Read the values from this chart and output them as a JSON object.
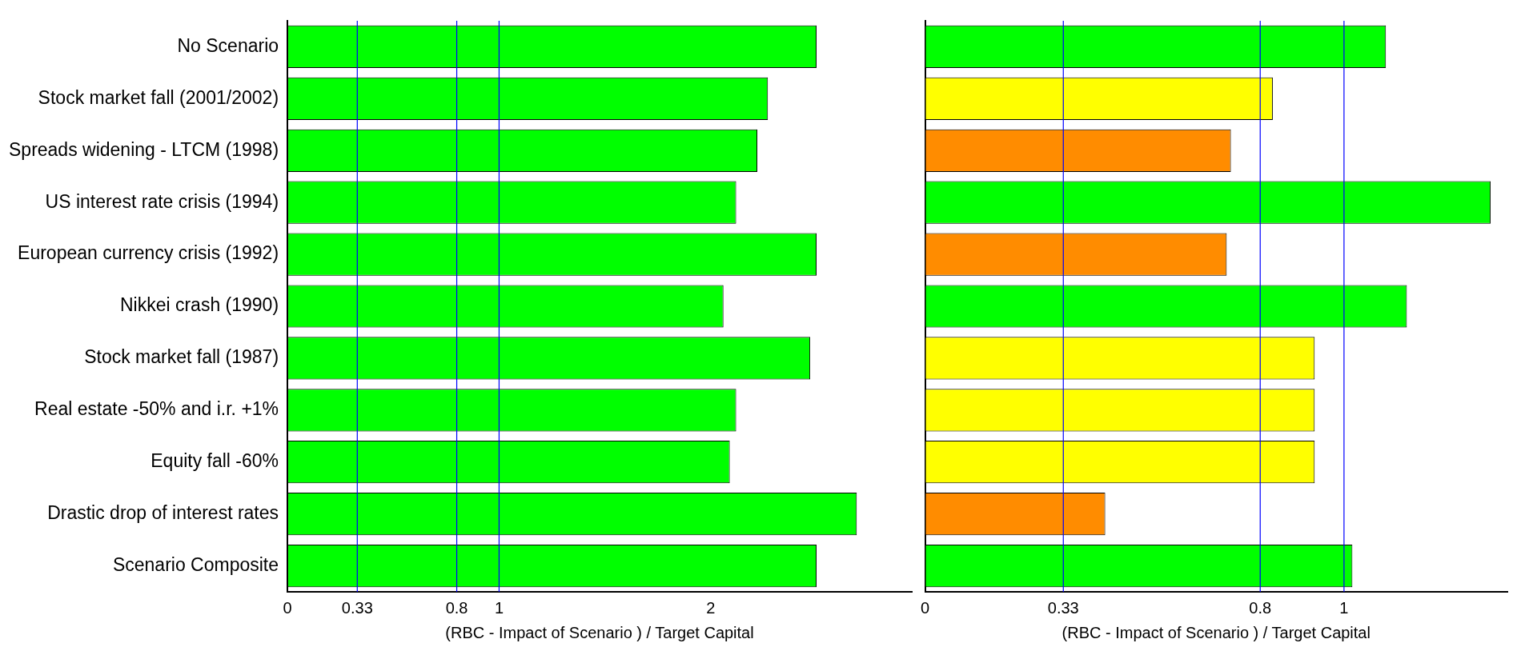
{
  "chart_data": [
    {
      "type": "bar",
      "orientation": "horizontal",
      "xlabel": "(RBC - Impact of Scenario ) / Target Capital",
      "categories": [
        "No Scenario",
        "Stock market fall (2001/2002)",
        "Spreads widening - LTCM (1998)",
        "US interest rate crisis (1994)",
        "European currency crisis (1992)",
        "Nikkei crash (1990)",
        "Stock market fall (1987)",
        "Real estate -50% and i.r. +1%",
        "Equity fall -60%",
        "Drastic drop of interest rates",
        "Scenario Composite"
      ],
      "values": [
        2.5,
        2.27,
        2.22,
        2.12,
        2.5,
        2.06,
        2.47,
        2.12,
        2.09,
        2.69,
        2.5
      ],
      "colors": [
        "#00ff00",
        "#00ff00",
        "#00ff00",
        "#00ff00",
        "#00ff00",
        "#00ff00",
        "#00ff00",
        "#00ff00",
        "#00ff00",
        "#00ff00",
        "#00ff00"
      ],
      "xlim": [
        0,
        2.95
      ],
      "xticks": [
        0,
        0.33,
        0.8,
        1,
        2
      ],
      "ref_lines": [
        {
          "axis": "x",
          "value": 0.33,
          "color": "#0000ff"
        },
        {
          "axis": "x",
          "value": 0.8,
          "color": "#0000ff"
        },
        {
          "axis": "x",
          "value": 1,
          "color": "#0000ff"
        }
      ]
    },
    {
      "type": "bar",
      "orientation": "horizontal",
      "xlabel": "(RBC - Impact of Scenario ) / Target Capital",
      "tick_labels": "x",
      "categories": [
        null,
        null,
        null,
        null,
        null,
        null,
        null,
        null,
        null,
        null,
        null
      ],
      "values": [
        1.1,
        0.83,
        0.73,
        1.35,
        0.72,
        1.15,
        0.93,
        0.93,
        0.93,
        0.43,
        1.02
      ],
      "colors": [
        "#00ff00",
        "#ffff00",
        "#ff8c00",
        "#00ff00",
        "#ff8c00",
        "#00ff00",
        "#ffff00",
        "#ffff00",
        "#ffff00",
        "#ff8c00",
        "#00ff00"
      ],
      "xlim": [
        0,
        1.39
      ],
      "xticks": [
        0,
        0.33,
        0.8,
        1
      ],
      "ref_lines": [
        {
          "axis": "x",
          "value": 0.33,
          "color": "#0000ff"
        },
        {
          "axis": "x",
          "value": 0.8,
          "color": "#0000ff"
        },
        {
          "axis": "x",
          "value": 1,
          "color": "#0000ff"
        }
      ]
    }
  ]
}
